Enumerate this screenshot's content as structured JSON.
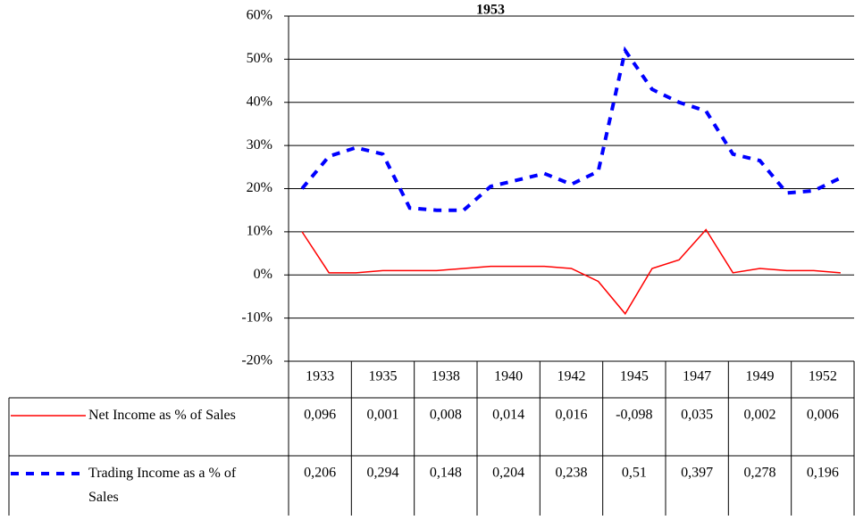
{
  "chart_data": {
    "type": "line",
    "title": "1953",
    "categories": [
      null,
      null,
      null,
      null,
      null,
      null,
      null,
      null,
      null,
      null,
      null,
      null,
      null,
      null,
      null,
      null,
      null,
      null,
      null,
      null,
      null
    ],
    "series": [
      {
        "name": "Net Income as % of Sales",
        "color": "#ff0000",
        "dash": false,
        "values": [
          10,
          0.5,
          0.5,
          1,
          1,
          1,
          1.5,
          2,
          2,
          2,
          1.5,
          -1.5,
          -9,
          1.5,
          3.5,
          10.5,
          0.5,
          1.5,
          1,
          1,
          0.5
        ]
      },
      {
        "name": "Trading Income as a % of Sales",
        "color": "#0000ff",
        "dash": true,
        "values": [
          20,
          27.5,
          29.5,
          28,
          15.5,
          15,
          15,
          20.5,
          22,
          23.5,
          21,
          24,
          52,
          43,
          40,
          38,
          28,
          26.5,
          19,
          19.5,
          22.5
        ]
      }
    ],
    "ylim": [
      -20,
      60
    ],
    "yticks": [
      {
        "value": -20,
        "label": "-20%"
      },
      {
        "value": -10,
        "label": "-10%"
      },
      {
        "value": 0,
        "label": "0%"
      },
      {
        "value": 10,
        "label": "10%"
      },
      {
        "value": 20,
        "label": "20%"
      },
      {
        "value": 30,
        "label": "30%"
      },
      {
        "value": 40,
        "label": "40%"
      },
      {
        "value": 50,
        "label": "50%"
      },
      {
        "value": 60,
        "label": "60%"
      }
    ],
    "grid": true,
    "data_table": {
      "columns": [
        "1933",
        "1935",
        "1938",
        "1940",
        "1942",
        "1945",
        "1947",
        "1949",
        "1952"
      ],
      "rows": [
        [
          "0,096",
          "0,001",
          "0,008",
          "0,014",
          "0,016",
          "-0,098",
          "0,035",
          "0,002",
          "0,006"
        ],
        [
          "0,206",
          "0,294",
          "0,148",
          "0,204",
          "0,238",
          "0,51",
          "0,397",
          "0,278",
          "0,196"
        ]
      ]
    }
  }
}
